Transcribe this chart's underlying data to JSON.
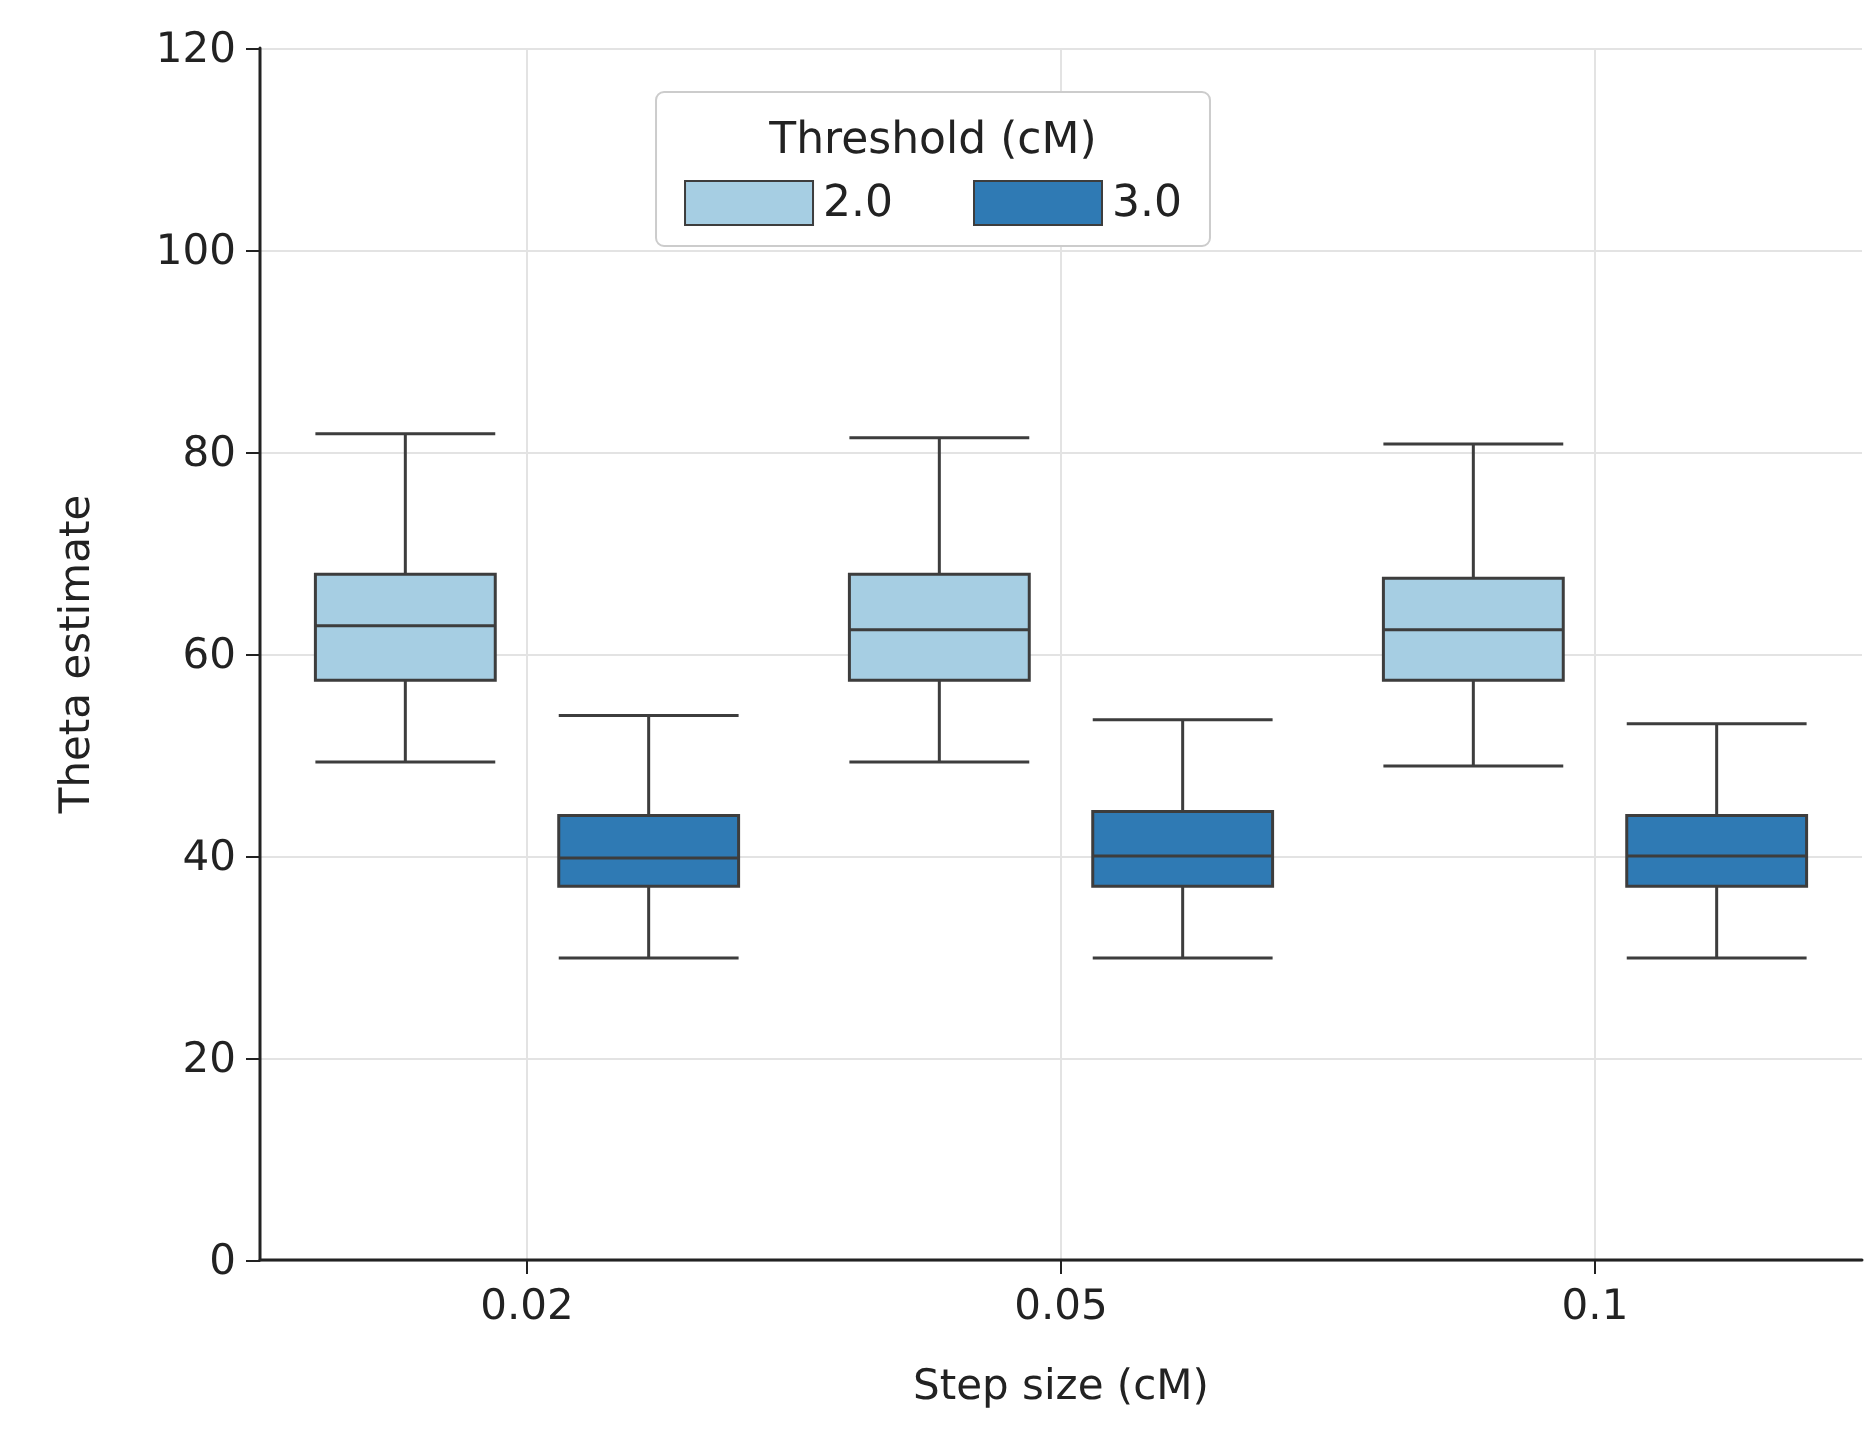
{
  "chart_data": {
    "type": "box",
    "xlabel": "Step size (cM)",
    "ylabel": "Theta estimate",
    "legend_title": "Threshold (cM)",
    "categories": [
      "0.02",
      "0.05",
      "0.1"
    ],
    "series": [
      {
        "name": "2.0",
        "color": "#a6cee3",
        "boxes": [
          {
            "low": 49.3,
            "q1": 57.4,
            "median": 62.8,
            "q3": 67.9,
            "high": 81.8
          },
          {
            "low": 49.3,
            "q1": 57.4,
            "median": 62.4,
            "q3": 67.9,
            "high": 81.4
          },
          {
            "low": 48.9,
            "q1": 57.4,
            "median": 62.4,
            "q3": 67.5,
            "high": 80.8
          }
        ]
      },
      {
        "name": "3.0",
        "color": "#2f7ab4",
        "boxes": [
          {
            "low": 29.9,
            "q1": 37.0,
            "median": 39.8,
            "q3": 44.0,
            "high": 53.9
          },
          {
            "low": 29.9,
            "q1": 37.0,
            "median": 40.0,
            "q3": 44.4,
            "high": 53.5
          },
          {
            "low": 29.9,
            "q1": 37.0,
            "median": 40.0,
            "q3": 44.0,
            "high": 53.1
          }
        ]
      }
    ],
    "ylim": [
      0,
      120
    ],
    "yticks": [
      0,
      20,
      40,
      60,
      80,
      100,
      120
    ],
    "grid": true,
    "legend": "top"
  }
}
